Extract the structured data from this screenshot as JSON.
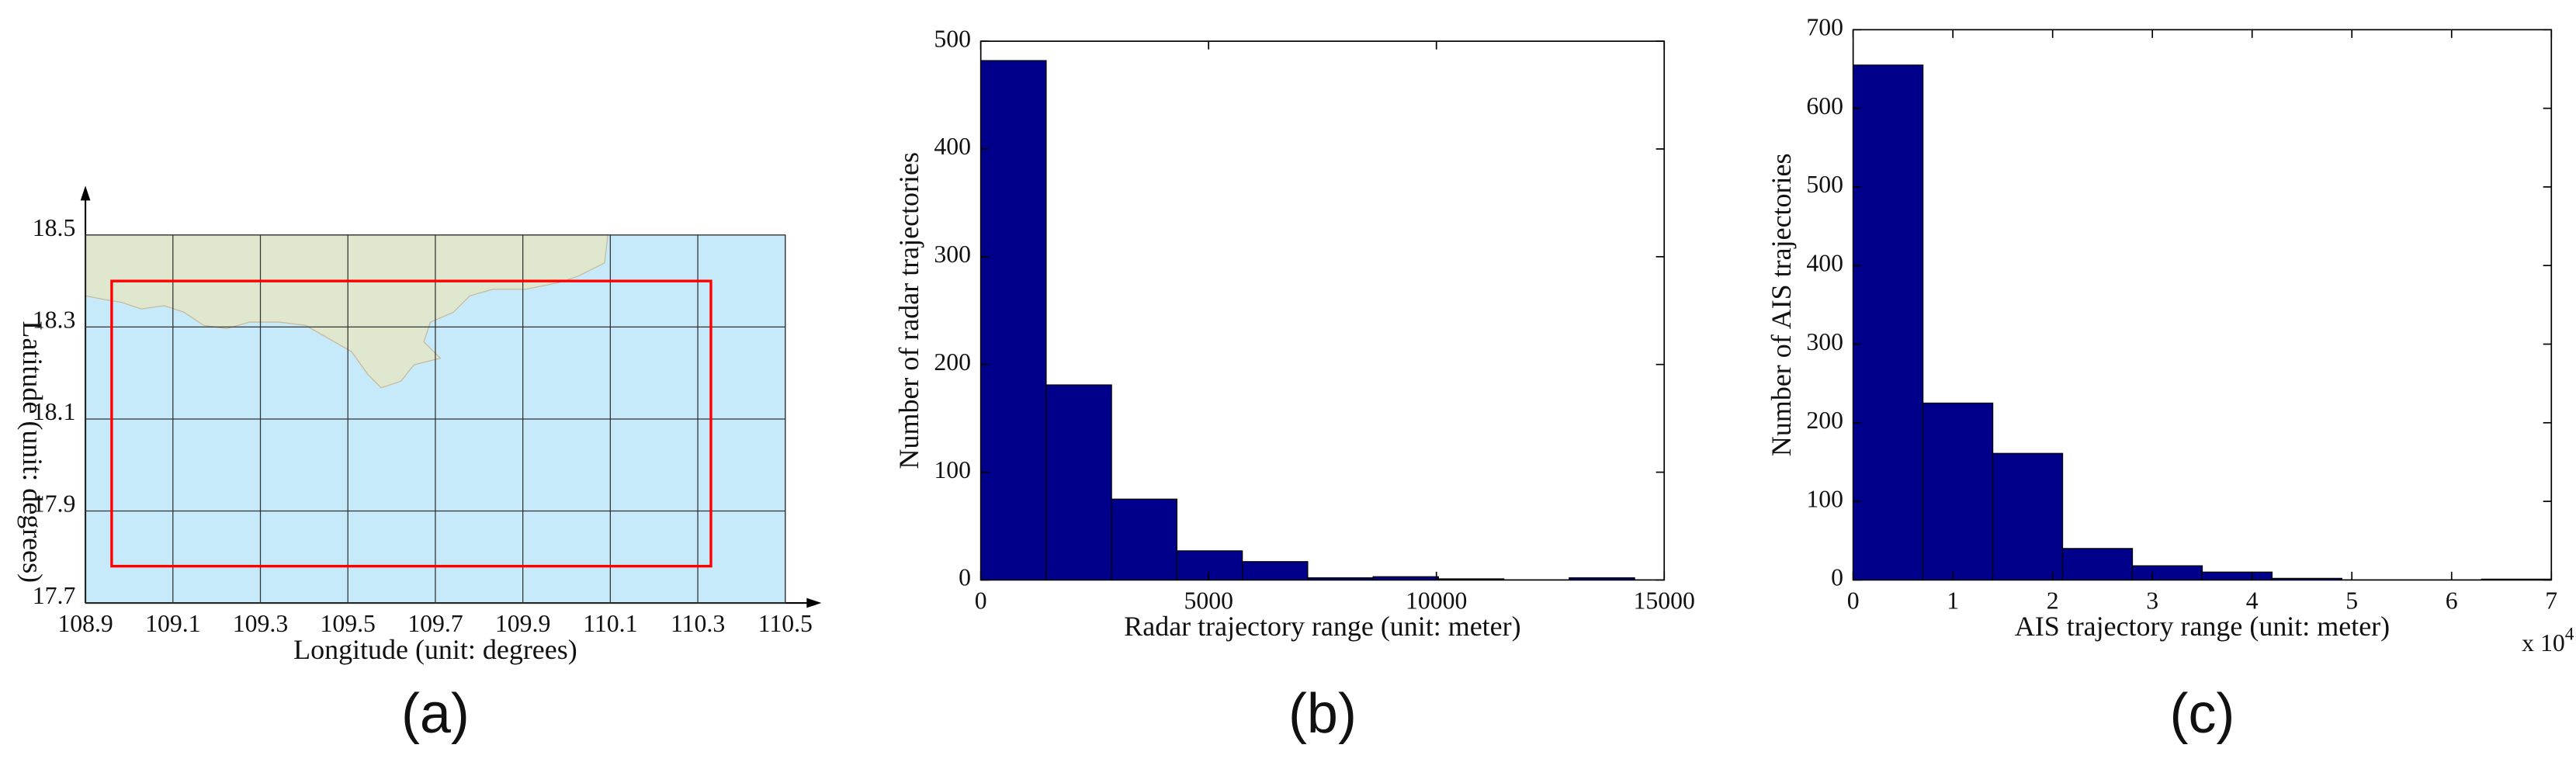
{
  "chart_data": [
    {
      "type": "map",
      "xlabel": "Longitude (unit: degrees)",
      "ylabel": "Latitude (unit: degrees)",
      "caption": "(a)",
      "xlim": [
        108.9,
        110.5
      ],
      "ylim": [
        17.7,
        18.5
      ],
      "xticks": [
        108.9,
        109.1,
        109.3,
        109.5,
        109.7,
        109.9,
        110.1,
        110.3,
        110.5
      ],
      "yticks": [
        17.7,
        17.9,
        18.1,
        18.3,
        18.5
      ],
      "grid": true,
      "region": {
        "lon": [
          108.96,
          110.33
        ],
        "lat": [
          17.78,
          18.4
        ],
        "color": "#ff0000"
      }
    },
    {
      "type": "histogram",
      "xlabel": "Radar trajectory range (unit: meter)",
      "ylabel": "Number of radar trajectories",
      "caption": "(b)",
      "bins": [
        0,
        1435,
        2870,
        4305,
        5740,
        7175,
        8610,
        10045,
        11480,
        12915,
        14350
      ],
      "values": [
        482,
        181,
        75,
        27,
        17,
        2,
        3,
        1,
        0,
        2
      ],
      "color": "#00008b",
      "xlim": [
        0,
        15000
      ],
      "ylim": [
        0,
        500
      ],
      "xticks": [
        0,
        5000,
        10000,
        15000
      ],
      "yticks": [
        0,
        100,
        200,
        300,
        400,
        500
      ]
    },
    {
      "type": "histogram",
      "xlabel": "AIS trajectory range (unit: meter)",
      "ylabel": "Number of AIS trajectories",
      "caption": "(c)",
      "bins": [
        0,
        0.7,
        1.4,
        2.1,
        2.8,
        3.5,
        4.2,
        4.9,
        5.6,
        6.3,
        7.0
      ],
      "values": [
        655,
        225,
        161,
        40,
        18,
        10,
        2,
        0,
        0,
        1
      ],
      "color": "#00008b",
      "xlim": [
        0,
        7
      ],
      "ylim": [
        0,
        700
      ],
      "xticks": [
        0,
        1,
        2,
        3,
        4,
        5,
        6,
        7
      ],
      "yticks": [
        0,
        100,
        200,
        300,
        400,
        500,
        600,
        700
      ],
      "x_multiplier": {
        "base": "x 10",
        "exponent": "4"
      }
    }
  ]
}
